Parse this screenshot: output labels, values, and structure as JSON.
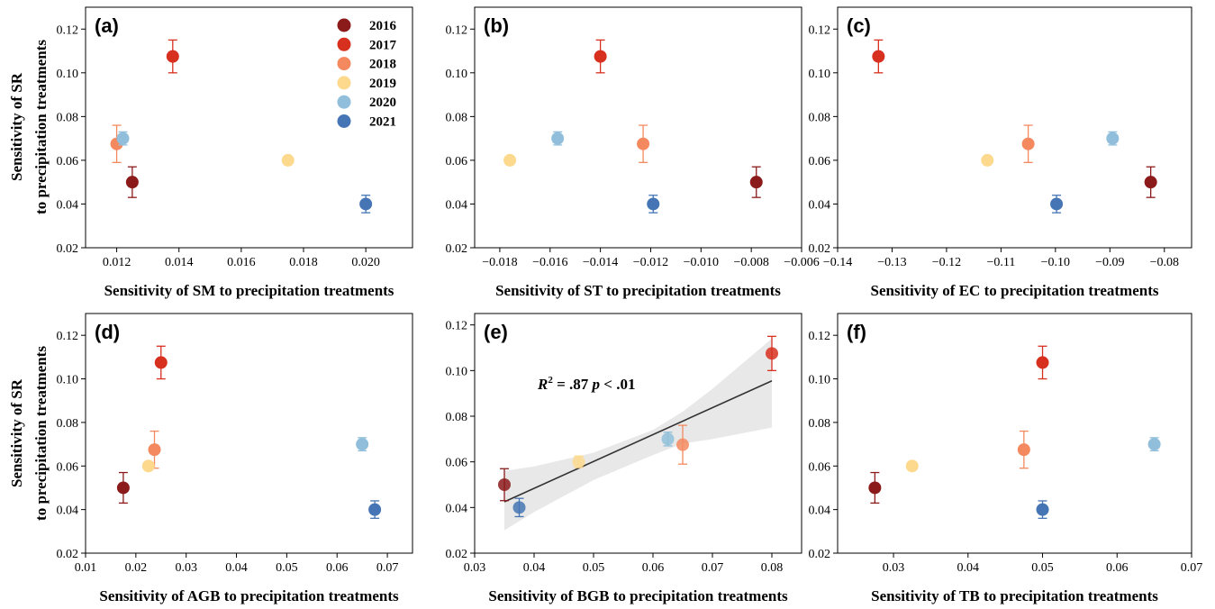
{
  "legend": {
    "items": [
      {
        "label": "2016",
        "color": "#8b1a1a"
      },
      {
        "label": "2017",
        "color": "#d7301f"
      },
      {
        "label": "2018",
        "color": "#f4895f"
      },
      {
        "label": "2019",
        "color": "#fdd98e"
      },
      {
        "label": "2020",
        "color": "#91bfdb"
      },
      {
        "label": "2021",
        "color": "#4575b4"
      }
    ]
  },
  "shared_ylabel_lines": [
    "Sensitivity of SR",
    "to precipitation treatments"
  ],
  "chart_data": [
    {
      "panel": "(a)",
      "type": "scatter",
      "xlabel": "Sensitivity of SM to precipitation treatments",
      "xlim": [
        0.011,
        0.0215
      ],
      "xticks": [
        "0.012",
        "0.014",
        "0.016",
        "0.018",
        "0.020"
      ],
      "ylim": [
        0.02,
        0.13
      ],
      "yticks": [
        "0.02",
        "0.04",
        "0.06",
        "0.08",
        "0.10",
        "0.12"
      ],
      "points": [
        {
          "year": "2016",
          "x": 0.0125,
          "y": 0.05,
          "err": 0.007
        },
        {
          "year": "2017",
          "x": 0.0138,
          "y": 0.1075,
          "err": 0.0075
        },
        {
          "year": "2018",
          "x": 0.012,
          "y": 0.0675,
          "err": 0.0085
        },
        {
          "year": "2019",
          "x": 0.0175,
          "y": 0.06,
          "err": 0.0
        },
        {
          "year": "2020",
          "x": 0.0122,
          "y": 0.07,
          "err": 0.003
        },
        {
          "year": "2021",
          "x": 0.02,
          "y": 0.04,
          "err": 0.004
        }
      ]
    },
    {
      "panel": "(b)",
      "type": "scatter",
      "xlabel": "Sensitivity of ST to precipitation treatments",
      "xlim": [
        -0.019,
        -0.006
      ],
      "xticks": [
        "−0.018",
        "−0.016",
        "−0.014",
        "−0.012",
        "−0.010",
        "−0.008",
        "−0.006"
      ],
      "ylim": [
        0.02,
        0.13
      ],
      "yticks": [
        "0.02",
        "0.04",
        "0.06",
        "0.08",
        "0.10",
        "0.12"
      ],
      "points": [
        {
          "year": "2016",
          "x": -0.0078,
          "y": 0.05,
          "err": 0.007
        },
        {
          "year": "2017",
          "x": -0.014,
          "y": 0.1075,
          "err": 0.0075
        },
        {
          "year": "2018",
          "x": -0.0123,
          "y": 0.0675,
          "err": 0.0085
        },
        {
          "year": "2019",
          "x": -0.0176,
          "y": 0.06,
          "err": 0.0
        },
        {
          "year": "2020",
          "x": -0.0157,
          "y": 0.07,
          "err": 0.003
        },
        {
          "year": "2021",
          "x": -0.0119,
          "y": 0.04,
          "err": 0.004
        }
      ]
    },
    {
      "panel": "(c)",
      "type": "scatter",
      "xlabel": "Sensitivity of EC to precipitation treatments",
      "xlim": [
        -0.14,
        -0.075
      ],
      "xticks": [
        "−0.14",
        "−0.13",
        "−0.12",
        "−0.11",
        "−0.10",
        "−0.09",
        "−0.08"
      ],
      "ylim": [
        0.02,
        0.13
      ],
      "yticks": [
        "0.02",
        "0.04",
        "0.06",
        "0.08",
        "0.10",
        "0.12"
      ],
      "points": [
        {
          "year": "2016",
          "x": -0.0825,
          "y": 0.05,
          "err": 0.007
        },
        {
          "year": "2017",
          "x": -0.1325,
          "y": 0.1075,
          "err": 0.0075
        },
        {
          "year": "2018",
          "x": -0.105,
          "y": 0.0675,
          "err": 0.0085
        },
        {
          "year": "2019",
          "x": -0.1125,
          "y": 0.06,
          "err": 0.0
        },
        {
          "year": "2020",
          "x": -0.0895,
          "y": 0.07,
          "err": 0.003
        },
        {
          "year": "2021",
          "x": -0.0998,
          "y": 0.04,
          "err": 0.004
        }
      ]
    },
    {
      "panel": "(d)",
      "type": "scatter",
      "xlabel": "Sensitivity of AGB to precipitation treatments",
      "xlim": [
        0.01,
        0.075
      ],
      "xticks": [
        "0.01",
        "0.02",
        "0.03",
        "0.04",
        "0.05",
        "0.06",
        "0.07"
      ],
      "ylim": [
        0.02,
        0.13
      ],
      "yticks": [
        "0.02",
        "0.04",
        "0.06",
        "0.08",
        "0.10",
        "0.12"
      ],
      "points": [
        {
          "year": "2016",
          "x": 0.0175,
          "y": 0.05,
          "err": 0.007
        },
        {
          "year": "2017",
          "x": 0.025,
          "y": 0.1075,
          "err": 0.0075
        },
        {
          "year": "2018",
          "x": 0.0237,
          "y": 0.0675,
          "err": 0.0085
        },
        {
          "year": "2019",
          "x": 0.0225,
          "y": 0.06,
          "err": 0.0
        },
        {
          "year": "2020",
          "x": 0.065,
          "y": 0.07,
          "err": 0.003
        },
        {
          "year": "2021",
          "x": 0.0675,
          "y": 0.04,
          "err": 0.004
        }
      ]
    },
    {
      "panel": "(e)",
      "type": "scatter",
      "xlabel": "Sensitivity of BGB to precipitation treatments",
      "xlim": [
        0.03,
        0.085
      ],
      "xticks": [
        "0.03",
        "0.04",
        "0.05",
        "0.06",
        "0.07",
        "0.08"
      ],
      "ylim": [
        0.02,
        0.125
      ],
      "yticks": [
        "0.02",
        "0.04",
        "0.06",
        "0.08",
        "0.10",
        "0.12"
      ],
      "annotation": {
        "r2_symbol": "R",
        "r2_sup": "2",
        "r2_text": " = .87  ",
        "p_symbol": "p",
        "p_text": " < .01"
      },
      "fit": {
        "x": [
          0.035,
          0.08
        ],
        "y": [
          0.0425,
          0.0955
        ]
      },
      "band": {
        "x": [
          0.035,
          0.04,
          0.05,
          0.06,
          0.065,
          0.07,
          0.08
        ],
        "upper": [
          0.056,
          0.058,
          0.064,
          0.074,
          0.082,
          0.092,
          0.114
        ],
        "lower": [
          0.03,
          0.038,
          0.052,
          0.063,
          0.068,
          0.07,
          0.075
        ]
      },
      "points": [
        {
          "year": "2016",
          "x": 0.035,
          "y": 0.05,
          "err": 0.007
        },
        {
          "year": "2017",
          "x": 0.08,
          "y": 0.1075,
          "err": 0.0075
        },
        {
          "year": "2018",
          "x": 0.065,
          "y": 0.0675,
          "err": 0.0085
        },
        {
          "year": "2019",
          "x": 0.0475,
          "y": 0.06,
          "err": 0.0025
        },
        {
          "year": "2020",
          "x": 0.0625,
          "y": 0.07,
          "err": 0.003
        },
        {
          "year": "2021",
          "x": 0.0375,
          "y": 0.04,
          "err": 0.004
        }
      ]
    },
    {
      "panel": "(f)",
      "type": "scatter",
      "xlabel": "Sensitivity of TB to precipitation treatments",
      "xlim": [
        0.0225,
        0.07
      ],
      "xticks": [
        "0.03",
        "0.04",
        "0.05",
        "0.06",
        "0.07"
      ],
      "ylim": [
        0.02,
        0.13
      ],
      "yticks": [
        "0.02",
        "0.04",
        "0.06",
        "0.08",
        "0.10",
        "0.12"
      ],
      "points": [
        {
          "year": "2016",
          "x": 0.0275,
          "y": 0.05,
          "err": 0.007
        },
        {
          "year": "2017",
          "x": 0.05,
          "y": 0.1075,
          "err": 0.0075
        },
        {
          "year": "2018",
          "x": 0.0475,
          "y": 0.0675,
          "err": 0.0085
        },
        {
          "year": "2019",
          "x": 0.0325,
          "y": 0.06,
          "err": 0.0
        },
        {
          "year": "2020",
          "x": 0.065,
          "y": 0.07,
          "err": 0.003
        },
        {
          "year": "2021",
          "x": 0.05,
          "y": 0.04,
          "err": 0.004
        }
      ]
    }
  ]
}
